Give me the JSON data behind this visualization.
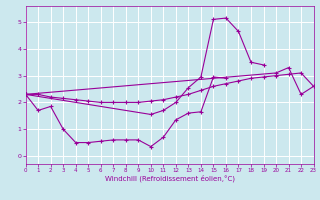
{
  "background_color": "#cce8ee",
  "grid_color": "#ffffff",
  "line_color": "#990099",
  "xlabel": "Windchill (Refroidissement éolien,°C)",
  "xlim": [
    0,
    23
  ],
  "ylim": [
    -0.3,
    5.6
  ],
  "yticks": [
    0,
    1,
    2,
    3,
    4,
    5
  ],
  "xticks": [
    0,
    1,
    2,
    3,
    4,
    5,
    6,
    7,
    8,
    9,
    10,
    11,
    12,
    13,
    14,
    15,
    16,
    17,
    18,
    19,
    20,
    21,
    22,
    23
  ],
  "series": [
    {
      "x": [
        0,
        1,
        2,
        3,
        4,
        5,
        6,
        7,
        8,
        9,
        10,
        11,
        12,
        13,
        14,
        15,
        16,
        17,
        18,
        19,
        20,
        21,
        22,
        23
      ],
      "y": [
        2.3,
        2.3,
        2.2,
        2.15,
        2.1,
        2.05,
        2.0,
        2.0,
        2.0,
        2.0,
        2.05,
        2.1,
        2.2,
        2.3,
        2.45,
        2.6,
        2.7,
        2.8,
        2.9,
        2.95,
        3.0,
        3.05,
        3.1,
        2.6
      ]
    },
    {
      "x": [
        0,
        1,
        2,
        3,
        4,
        5,
        6,
        7,
        8,
        9,
        10,
        11,
        12,
        13,
        14,
        15,
        16
      ],
      "y": [
        2.3,
        1.7,
        1.85,
        1.0,
        0.5,
        0.5,
        0.55,
        0.6,
        0.6,
        0.6,
        0.35,
        0.7,
        1.35,
        1.6,
        1.65,
        2.95,
        2.9
      ]
    },
    {
      "x": [
        0,
        10,
        11,
        12,
        13,
        14,
        15,
        16,
        17,
        18,
        19
      ],
      "y": [
        2.3,
        1.55,
        1.7,
        2.0,
        2.55,
        2.95,
        5.1,
        5.15,
        4.65,
        3.5,
        3.4
      ]
    },
    {
      "x": [
        0,
        20,
        21,
        22,
        23
      ],
      "y": [
        2.3,
        3.1,
        3.3,
        2.3,
        2.6
      ]
    }
  ]
}
